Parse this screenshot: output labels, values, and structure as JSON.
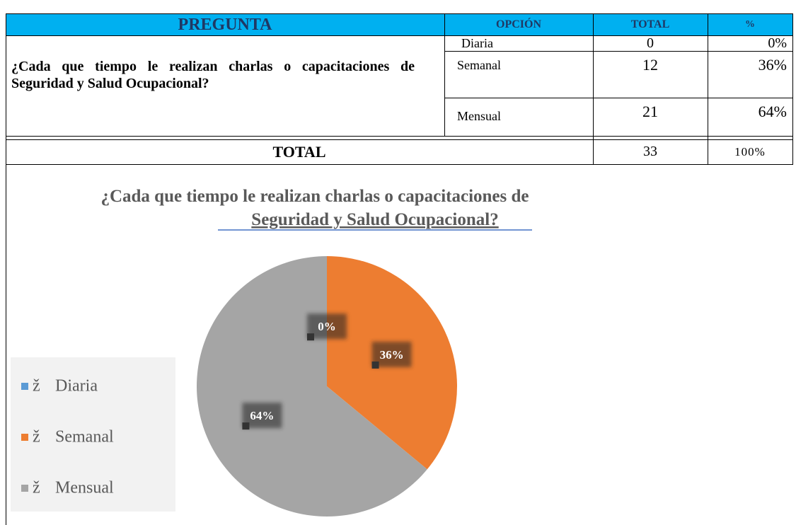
{
  "table": {
    "header": [
      "PREGUNTA",
      "OPCIÓN",
      "TOTAL",
      "%"
    ],
    "question": "¿Cada que tiempo le realizan charlas o capacitaciones de Seguridad y Salud Ocupacional?",
    "rows": [
      [
        "Diaria",
        "0",
        "0%"
      ],
      [
        "Semanal",
        "12",
        "36%"
      ],
      [
        "Mensual",
        "21",
        "64%"
      ]
    ],
    "total": {
      "label": "TOTAL",
      "count": "33",
      "percent": "100%"
    }
  },
  "chart_data": {
    "type": "pie",
    "title": [
      "¿Cada que tiempo le realizan charlas o capacitaciones de",
      "Seguridad y Salud Ocupacional?"
    ],
    "categories": [
      "Diaria",
      "Semanal",
      "Mensual"
    ],
    "values": [
      0,
      36,
      64
    ],
    "value_labels": [
      "0%",
      "36%",
      "64%"
    ],
    "colors": [
      "#5b9bd5",
      "#ed7d31",
      "#a5a5a5"
    ],
    "legend_marker": "ž",
    "legend": "left"
  }
}
